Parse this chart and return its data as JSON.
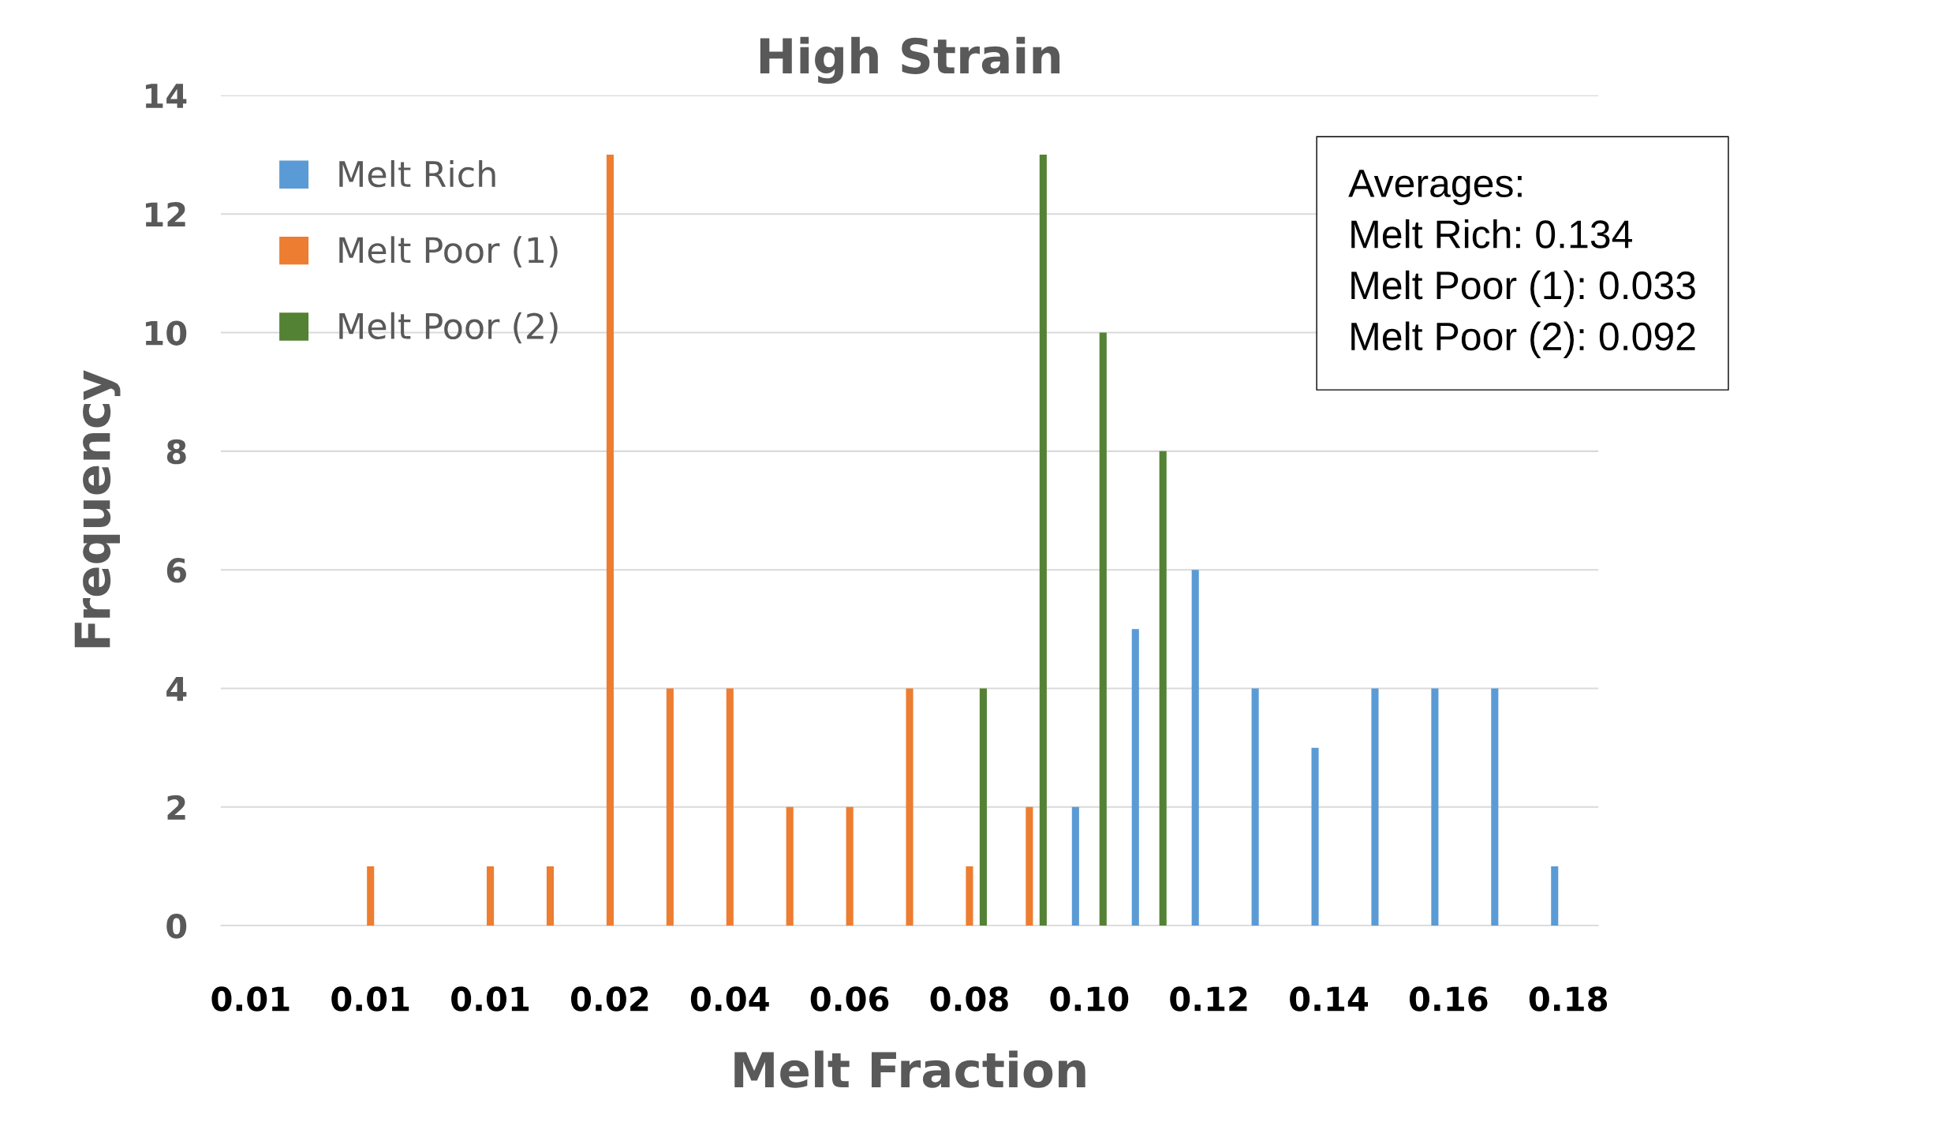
{
  "chart_data": {
    "type": "bar",
    "title": "High Strain",
    "xlabel": "Melt Fraction",
    "ylabel": "Frequency",
    "categories": [
      "0.01",
      null,
      "0.01",
      null,
      "0.01",
      null,
      "0.02",
      null,
      "0.04",
      null,
      "0.06",
      null,
      "0.08",
      null,
      "0.10",
      null,
      "0.12",
      null,
      "0.14",
      null,
      "0.16",
      null,
      "0.18"
    ],
    "series": [
      {
        "name": "Melt Rich",
        "color": "#5b9bd5",
        "values": [
          null,
          null,
          null,
          null,
          null,
          null,
          null,
          null,
          null,
          null,
          null,
          null,
          null,
          null,
          2,
          5,
          6,
          4,
          3,
          4,
          4,
          4,
          1
        ]
      },
      {
        "name": "Melt Poor (1)",
        "color": "#ed7d31",
        "values": [
          null,
          null,
          1,
          null,
          1,
          1,
          13,
          4,
          4,
          2,
          2,
          4,
          1,
          2,
          null,
          null,
          null,
          null,
          null,
          null,
          null,
          null,
          null
        ]
      },
      {
        "name": "Melt Poor (2)",
        "color": "#548235",
        "values": [
          null,
          null,
          null,
          null,
          null,
          null,
          null,
          null,
          null,
          null,
          null,
          null,
          4,
          13,
          10,
          8,
          null,
          null,
          null,
          null,
          null,
          null,
          null
        ]
      }
    ],
    "ylim": [
      0,
      14
    ],
    "yticks": [
      0,
      2,
      4,
      6,
      8,
      10,
      12,
      14
    ],
    "grid": "y",
    "legend": "top left",
    "annotations": [
      "Averages:\nMelt Rich: 0.134\nMelt Poor (1): 0.033\nMelt Poor (2): 0.092"
    ]
  }
}
